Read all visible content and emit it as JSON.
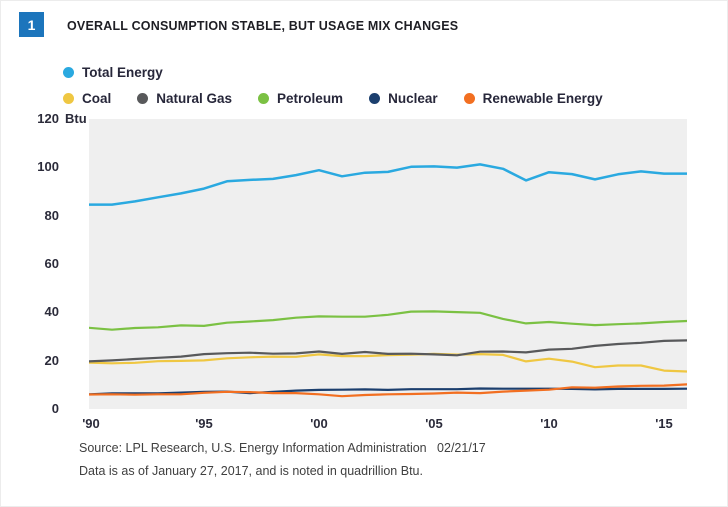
{
  "header": {
    "badge": "1",
    "title": "OVERALL CONSUMPTION STABLE, BUT USAGE MIX CHANGES"
  },
  "chart_data": {
    "type": "line",
    "title": "Overall Consumption Stable, But Usage Mix Changes",
    "ylabel": "Btu",
    "ylim": [
      0,
      120
    ],
    "grid": false,
    "legend_position": "top",
    "plot_background": "#efefef",
    "yticks": [
      "120",
      "100",
      "80",
      "60",
      "40",
      "20",
      "0"
    ],
    "xticks": [
      "'90",
      "'95",
      "'00",
      "'05",
      "'10",
      "'15"
    ],
    "x": [
      1990,
      1991,
      1992,
      1993,
      1994,
      1995,
      1996,
      1997,
      1998,
      1999,
      2000,
      2001,
      2002,
      2003,
      2004,
      2005,
      2006,
      2007,
      2008,
      2009,
      2010,
      2011,
      2012,
      2013,
      2014,
      2015,
      2016
    ],
    "series": [
      {
        "name": "Total Energy",
        "color": "#2aa9e0",
        "width": 2.5,
        "values": [
          84.6,
          84.6,
          85.9,
          87.6,
          89.2,
          91.2,
          94.2,
          94.8,
          95.2,
          96.8,
          98.8,
          96.3,
          97.8,
          98.1,
          100.2,
          100.4,
          99.9,
          101.2,
          99.4,
          94.6,
          98.0,
          97.2,
          95.0,
          97.1,
          98.3,
          97.4,
          97.4
        ]
      },
      {
        "name": "Coal",
        "color": "#efc742",
        "width": 2.2,
        "values": [
          19.2,
          18.9,
          19.1,
          19.8,
          19.9,
          20.1,
          21.0,
          21.4,
          21.7,
          21.6,
          22.6,
          21.9,
          21.9,
          22.3,
          22.5,
          22.8,
          22.5,
          22.7,
          22.4,
          19.7,
          20.8,
          19.6,
          17.3,
          18.0,
          18.0,
          15.9,
          15.5
        ]
      },
      {
        "name": "Natural Gas",
        "color": "#58595b",
        "width": 2.2,
        "values": [
          19.7,
          20.1,
          20.7,
          21.2,
          21.7,
          22.7,
          23.1,
          23.3,
          22.9,
          23.0,
          23.8,
          22.8,
          23.6,
          22.8,
          22.9,
          22.6,
          22.2,
          23.7,
          23.8,
          23.4,
          24.6,
          24.9,
          26.1,
          26.9,
          27.4,
          28.2,
          28.4
        ]
      },
      {
        "name": "Petroleum",
        "color": "#7bc143",
        "width": 2.2,
        "values": [
          33.6,
          32.8,
          33.5,
          33.8,
          34.6,
          34.4,
          35.7,
          36.2,
          36.8,
          37.8,
          38.3,
          38.2,
          38.2,
          39.0,
          40.3,
          40.4,
          40.1,
          39.8,
          37.3,
          35.4,
          36.0,
          35.3,
          34.7,
          35.1,
          35.4,
          36.0,
          36.4
        ]
      },
      {
        "name": "Nuclear",
        "color": "#1c3f6e",
        "width": 2.2,
        "values": [
          6.1,
          6.5,
          6.5,
          6.5,
          6.8,
          7.1,
          7.2,
          6.6,
          7.1,
          7.6,
          7.9,
          8.0,
          8.1,
          7.9,
          8.2,
          8.2,
          8.2,
          8.5,
          8.4,
          8.4,
          8.4,
          8.3,
          8.1,
          8.3,
          8.3,
          8.3,
          8.4
        ]
      },
      {
        "name": "Renewable Energy",
        "color": "#f26f21",
        "width": 2.2,
        "values": [
          6.0,
          6.1,
          5.9,
          6.1,
          6.1,
          6.7,
          7.1,
          7.0,
          6.6,
          6.6,
          6.1,
          5.3,
          5.8,
          6.1,
          6.2,
          6.4,
          6.8,
          6.6,
          7.2,
          7.6,
          8.0,
          9.0,
          8.8,
          9.3,
          9.6,
          9.7,
          10.2
        ]
      }
    ]
  },
  "footer": {
    "source_line": "Source: LPL Research, U.S. Energy Information Administration   02/21/17",
    "note_line": "Data is as of January 27, 2017, and is noted in quadrillion Btu."
  }
}
